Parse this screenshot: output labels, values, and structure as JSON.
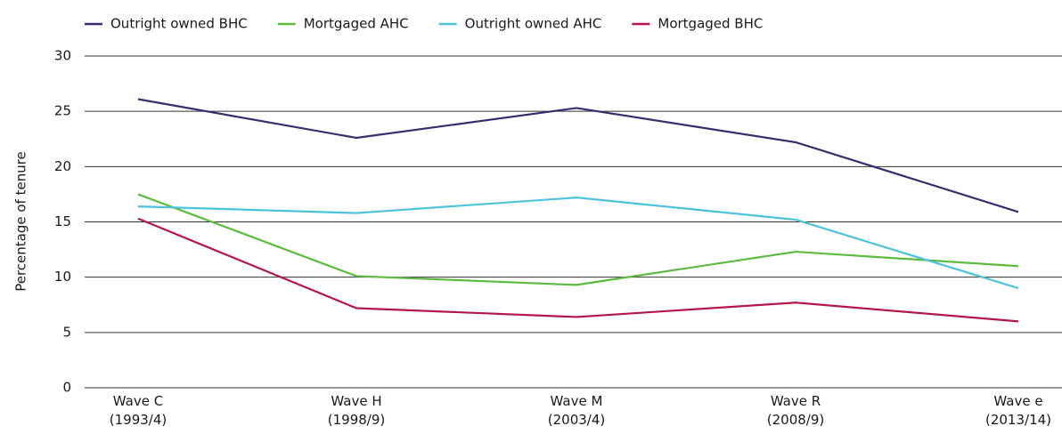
{
  "chart_data": {
    "type": "line",
    "y_label": "Percentage of tenure",
    "categories": [
      "Wave C\n(1993/4)",
      "Wave H\n(1998/9)",
      "Wave M\n(2003/4)",
      "Wave R\n(2008/9)",
      "Wave e\n(2013/14)"
    ],
    "series": [
      {
        "name": "Outright owned BHC",
        "color": "#3d2b6e",
        "values": [
          26.1,
          22.6,
          25.3,
          22.2,
          15.9
        ]
      },
      {
        "name": "Mortgaged AHC",
        "color": "#5dbb3f",
        "values": [
          17.5,
          10.1,
          9.3,
          12.3,
          11.0
        ]
      },
      {
        "name": "Outright owned AHC",
        "color": "#4dc3db",
        "values": [
          16.4,
          15.8,
          17.2,
          15.2,
          9.0
        ]
      },
      {
        "name": "Mortgaged BHC",
        "color": "#b5174c",
        "values": [
          15.3,
          7.2,
          6.4,
          7.7,
          6.0
        ]
      }
    ],
    "ylim": [
      0,
      30
    ],
    "yticks": [
      0,
      5,
      10,
      15,
      20,
      25,
      30
    ],
    "grid": true,
    "legend": "top"
  }
}
